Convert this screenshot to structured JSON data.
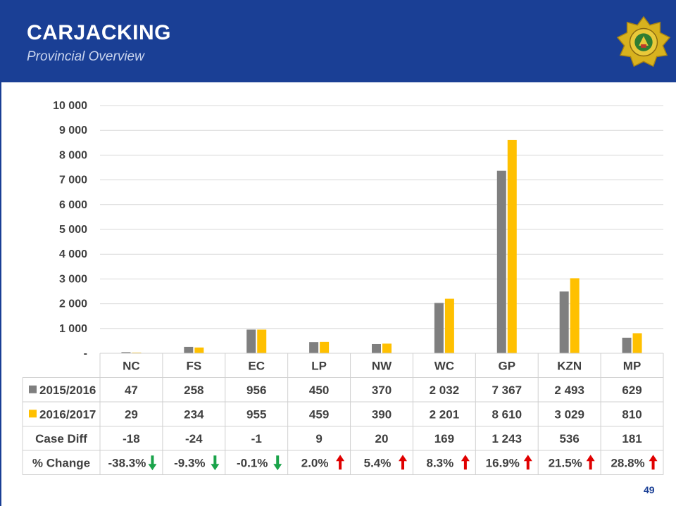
{
  "header": {
    "title": "CARJACKING",
    "subtitle": "Provincial Overview"
  },
  "colors": {
    "header_bg": "#1a3f95",
    "series_2015": "#7f7f7f",
    "series_2016": "#ffc000",
    "arrow_up": "#e00000",
    "arrow_down": "#1aa34a"
  },
  "chart_data": {
    "type": "bar",
    "ylim": [
      0,
      10000
    ],
    "y_ticks": [
      "-",
      "1 000",
      "2 000",
      "3 000",
      "4 000",
      "5 000",
      "6 000",
      "7 000",
      "8 000",
      "9 000",
      "10 000"
    ],
    "grid": true,
    "categories": [
      "NC",
      "FS",
      "EC",
      "LP",
      "NW",
      "WC",
      "GP",
      "KZN",
      "MP"
    ],
    "series": [
      {
        "name": "2015/2016",
        "values": [
          47,
          258,
          956,
          450,
          370,
          2032,
          7367,
          2493,
          629
        ],
        "labels": [
          "47",
          "258",
          "956",
          "450",
          "370",
          "2 032",
          "7 367",
          "2 493",
          "629"
        ]
      },
      {
        "name": "2016/2017",
        "values": [
          29,
          234,
          955,
          459,
          390,
          2201,
          8610,
          3029,
          810
        ],
        "labels": [
          "29",
          "234",
          "955",
          "459",
          "390",
          "2 201",
          "8 610",
          "3 029",
          "810"
        ]
      }
    ],
    "table_rows": [
      {
        "label": "Case Diff",
        "values": [
          "-18",
          "-24",
          "-1",
          "9",
          "20",
          "169",
          "1 243",
          "536",
          "181"
        ]
      },
      {
        "label": "% Change",
        "values": [
          "-38.3%",
          "-9.3%",
          "-0.1%",
          "2.0%",
          "5.4%",
          "8.3%",
          "16.9%",
          "21.5%",
          "28.8%"
        ],
        "arrows": [
          "down",
          "down",
          "down",
          "up",
          "up",
          "up",
          "up",
          "up",
          "up"
        ]
      }
    ]
  },
  "footer": {
    "page_number": "49"
  }
}
